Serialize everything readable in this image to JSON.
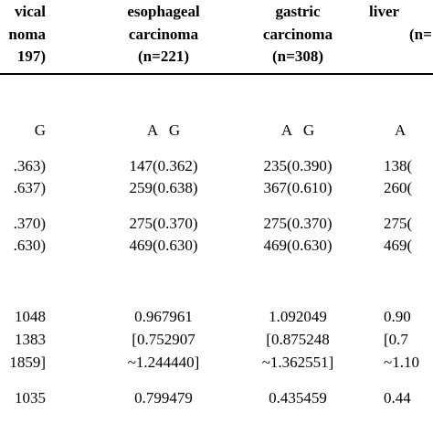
{
  "header": {
    "col1": {
      "line1": "vical",
      "line2": "noma",
      "line3": "197)"
    },
    "col2": {
      "line1": "esophageal",
      "line2": "carcinoma",
      "line3": "(n=221)"
    },
    "col3": {
      "line1": "gastric",
      "line2": "carcinoma",
      "line3": "(n=308)"
    },
    "col4": {
      "line1": "liver",
      "line2": "(n="
    }
  },
  "rows": {
    "allele_header": {
      "col1": "G",
      "col2": "A   G",
      "col3": "A   G",
      "col4": "A"
    },
    "r1": {
      "col1": ".363)",
      "col2": "147(0.362)",
      "col3": "235(0.390)",
      "col4": "138("
    },
    "r2": {
      "col1": ".637)",
      "col2": "259(0.638)",
      "col3": "367(0.610)",
      "col4": "260("
    },
    "r3": {
      "col1": ".370)",
      "col2": "275(0.370)",
      "col3": "275(0.370)",
      "col4": "275("
    },
    "r4": {
      "col1": ".630)",
      "col2": "469(0.630)",
      "col3": "469(0.630)",
      "col4": "469("
    },
    "r5": {
      "col1": "1048",
      "col2": "0.967961",
      "col3": "1.092049",
      "col4": "0.90"
    },
    "r6": {
      "col1": "1383",
      "col2": "[0.752907",
      "col3": "[0.875248",
      "col4": "[0.7"
    },
    "r7": {
      "col1": "1859]",
      "col2": "~1.244440]",
      "col3": "~1.362551]",
      "col4": "~1.10"
    },
    "r8": {
      "col1": "1035",
      "col2": "0.799479",
      "col3": "0.435459",
      "col4": "0.44"
    }
  }
}
